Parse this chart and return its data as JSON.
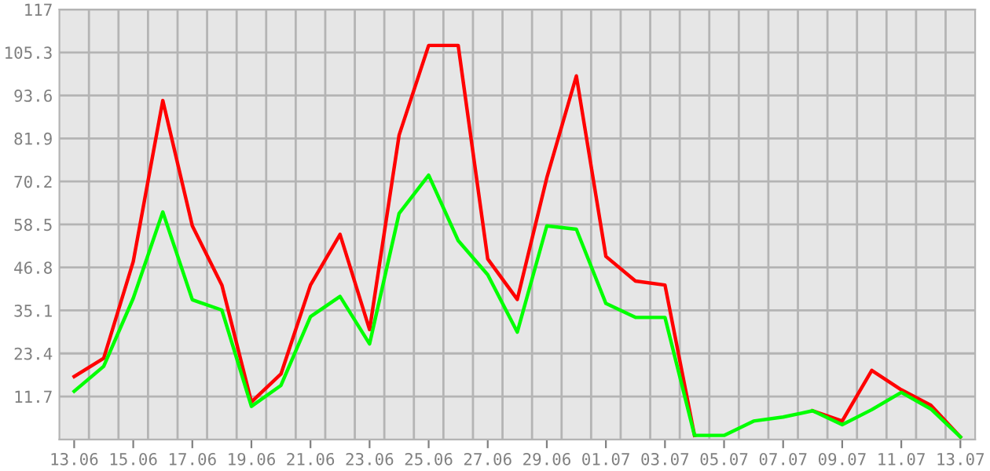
{
  "chart_data": {
    "type": "line",
    "categories": [
      "13.06",
      null,
      "15.06",
      null,
      "17.06",
      null,
      "19.06",
      null,
      "21.06",
      null,
      "23.06",
      null,
      "25.06",
      null,
      "27.06",
      null,
      "29.06",
      null,
      "01.07",
      null,
      "03.07",
      null,
      "05.07",
      null,
      "07.07",
      null,
      "09.07",
      null,
      "11.07",
      null,
      "13.07"
    ],
    "series": [
      {
        "color": "#ff0000",
        "values": [
          17.1,
          22.1,
          48.4,
          92.2,
          58.1,
          42.0,
          10.2,
          17.8,
          42.0,
          55.8,
          29.9,
          82.8,
          107.2,
          107.2,
          49.1,
          38.1,
          71.2,
          98.9,
          49.8,
          43.1,
          42.0,
          1.1,
          null,
          null,
          null,
          7.8,
          5.0,
          18.8,
          13.5,
          9.3,
          0.7
        ]
      },
      {
        "color": "#00ff00",
        "values": [
          13.1,
          19.9,
          38.4,
          61.9,
          38.0,
          35.2,
          9.0,
          14.7,
          33.4,
          38.9,
          26.0,
          61.5,
          71.9,
          54.1,
          44.8,
          29.2,
          58.1,
          57.2,
          37.0,
          33.2,
          33.2,
          1.1,
          1.1,
          5.0,
          6.1,
          7.8,
          4.0,
          8.1,
          12.8,
          8.3,
          0.7
        ]
      }
    ],
    "ylim": [
      0,
      117
    ],
    "yticks": [
      11.7,
      23.4,
      35.1,
      46.8,
      58.5,
      70.2,
      81.9,
      93.6,
      105.3,
      117
    ],
    "grid": true,
    "line_style": "solid"
  }
}
